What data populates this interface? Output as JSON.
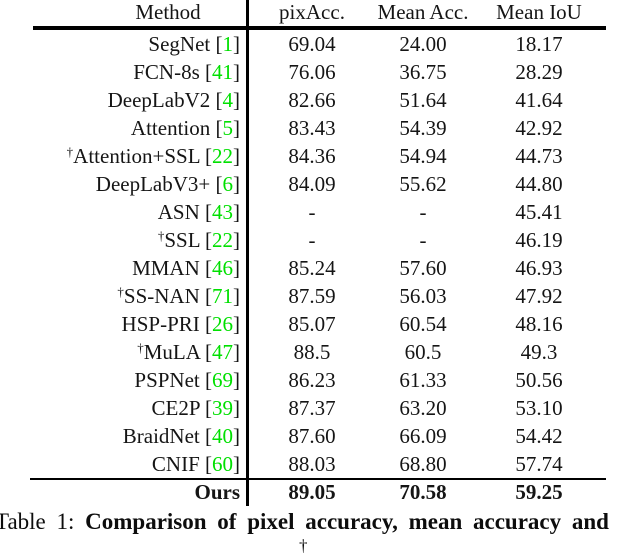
{
  "colors": {
    "citation": "#00e000",
    "text": "#151515"
  },
  "table": {
    "headers": {
      "method": "Method",
      "pixacc": "pixAcc.",
      "meanacc": "Mean Acc.",
      "meaniou": "Mean IoU"
    },
    "rows": [
      {
        "dagger": "",
        "method": "SegNet",
        "cite": "1",
        "values": [
          "69.04",
          "24.00",
          "18.17"
        ]
      },
      {
        "dagger": "",
        "method": "FCN-8s",
        "cite": "41",
        "values": [
          "76.06",
          "36.75",
          "28.29"
        ]
      },
      {
        "dagger": "",
        "method": "DeepLabV2",
        "cite": "4",
        "values": [
          "82.66",
          "51.64",
          "41.64"
        ]
      },
      {
        "dagger": "",
        "method": "Attention",
        "cite": "5",
        "values": [
          "83.43",
          "54.39",
          "42.92"
        ]
      },
      {
        "dagger": "†",
        "method": "Attention+SSL",
        "cite": "22",
        "values": [
          "84.36",
          "54.94",
          "44.73"
        ]
      },
      {
        "dagger": "",
        "method": "DeepLabV3+",
        "cite": "6",
        "values": [
          "84.09",
          "55.62",
          "44.80"
        ]
      },
      {
        "dagger": "",
        "method": "ASN",
        "cite": "43",
        "values": [
          "-",
          "-",
          "45.41"
        ]
      },
      {
        "dagger": "†",
        "method": "SSL",
        "cite": "22",
        "values": [
          "-",
          "-",
          "46.19"
        ]
      },
      {
        "dagger": "",
        "method": "MMAN",
        "cite": "46",
        "values": [
          "85.24",
          "57.60",
          "46.93"
        ]
      },
      {
        "dagger": "†",
        "method": "SS-NAN",
        "cite": "71",
        "values": [
          "87.59",
          "56.03",
          "47.92"
        ]
      },
      {
        "dagger": "",
        "method": "HSP-PRI",
        "cite": "26",
        "values": [
          "85.07",
          "60.54",
          "48.16"
        ]
      },
      {
        "dagger": "†",
        "method": "MuLA",
        "cite": "47",
        "values": [
          "88.5",
          "60.5",
          "49.3"
        ]
      },
      {
        "dagger": "",
        "method": "PSPNet",
        "cite": "69",
        "values": [
          "86.23",
          "61.33",
          "50.56"
        ]
      },
      {
        "dagger": "",
        "method": "CE2P",
        "cite": "39",
        "values": [
          "87.37",
          "63.20",
          "53.10"
        ]
      },
      {
        "dagger": "",
        "method": "BraidNet",
        "cite": "40",
        "values": [
          "87.60",
          "66.09",
          "54.42"
        ]
      },
      {
        "dagger": "",
        "method": "CNIF",
        "cite": "60",
        "values": [
          "88.03",
          "68.80",
          "57.74"
        ]
      }
    ],
    "ours": {
      "method": "Ours",
      "values": [
        "89.05",
        "70.58",
        "59.25"
      ]
    }
  },
  "caption": {
    "label": "Table 1:",
    "bold_text": "Comparison of pixel accuracy, mean accuracy and",
    "next_line_partial": "†"
  },
  "chart_data": {
    "type": "table",
    "title": "Table 1: Comparison of pixel accuracy, mean accuracy and",
    "columns": [
      "Method",
      "pixAcc.",
      "Mean Acc.",
      "Mean IoU"
    ],
    "rows": [
      [
        "SegNet [1]",
        69.04,
        24.0,
        18.17
      ],
      [
        "FCN-8s [41]",
        76.06,
        36.75,
        28.29
      ],
      [
        "DeepLabV2 [4]",
        82.66,
        51.64,
        41.64
      ],
      [
        "Attention [5]",
        83.43,
        54.39,
        42.92
      ],
      [
        "†Attention+SSL [22]",
        84.36,
        54.94,
        44.73
      ],
      [
        "DeepLabV3+ [6]",
        84.09,
        55.62,
        44.8
      ],
      [
        "ASN [43]",
        null,
        null,
        45.41
      ],
      [
        "†SSL [22]",
        null,
        null,
        46.19
      ],
      [
        "MMAN [46]",
        85.24,
        57.6,
        46.93
      ],
      [
        "†SS-NAN [71]",
        87.59,
        56.03,
        47.92
      ],
      [
        "HSP-PRI [26]",
        85.07,
        60.54,
        48.16
      ],
      [
        "†MuLA [47]",
        88.5,
        60.5,
        49.3
      ],
      [
        "PSPNet [69]",
        86.23,
        61.33,
        50.56
      ],
      [
        "CE2P [39]",
        87.37,
        63.2,
        53.1
      ],
      [
        "BraidNet [40]",
        87.6,
        66.09,
        54.42
      ],
      [
        "CNIF [60]",
        88.03,
        68.8,
        57.74
      ],
      [
        "Ours",
        89.05,
        70.58,
        59.25
      ]
    ]
  }
}
